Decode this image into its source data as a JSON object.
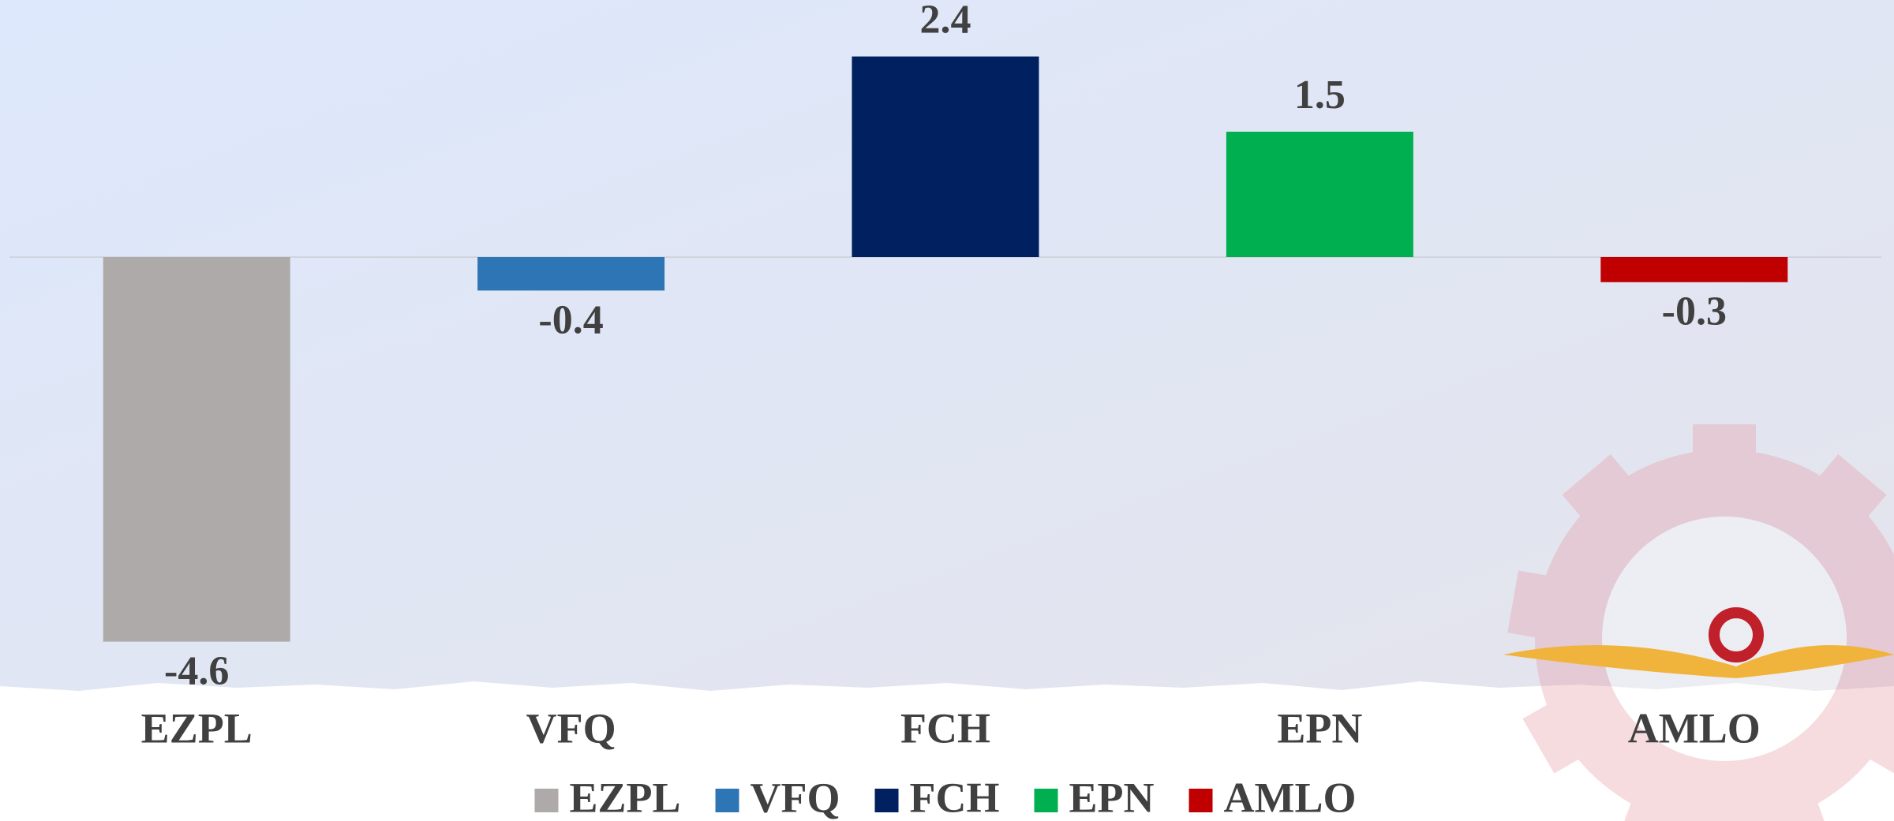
{
  "chart_data": {
    "type": "bar",
    "categories": [
      "EZPL",
      "VFQ",
      "FCH",
      "EPN",
      "AMLO"
    ],
    "values": [
      -4.6,
      -0.4,
      2.4,
      1.5,
      -0.3
    ],
    "colors": [
      "#aeaaaa",
      "#2e75b6",
      "#002060",
      "#00b050",
      "#c00000"
    ],
    "ylim": [
      -5,
      3
    ],
    "legend": "bottom"
  }
}
